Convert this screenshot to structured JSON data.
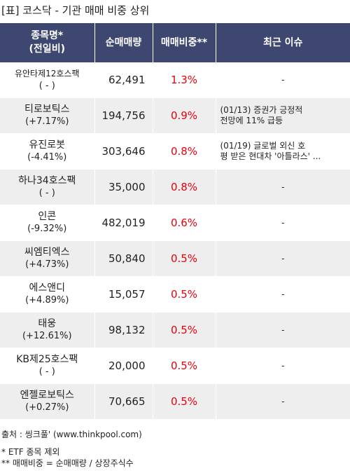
{
  "title": "[표] 코스닥 - 기관 매매 비중 상위",
  "headers": {
    "name_line1": "종목명*",
    "name_line2": "(전일비)",
    "volume": "순매매량",
    "ratio": "매매비중**",
    "issue": "최근 이슈"
  },
  "rows": [
    {
      "name": "유안타제12호스팩",
      "change": "( - )",
      "volume": "62,491",
      "ratio": "1.3%",
      "issue_line1": "-",
      "issue_line2": ""
    },
    {
      "name": "티로보틱스",
      "change": "(+7.17%)",
      "volume": "194,756",
      "ratio": "0.9%",
      "issue_line1": "(01/13) 증권가 긍정적",
      "issue_line2": "전망에 11% 급등"
    },
    {
      "name": "유진로봇",
      "change": "(-4.41%)",
      "volume": "303,646",
      "ratio": "0.8%",
      "issue_line1": "(01/19) 글로벌 외신 호",
      "issue_line2": "평 받은 현대차 '아틀라스' ..."
    },
    {
      "name": "하나34호스팩",
      "change": "( - )",
      "volume": "35,000",
      "ratio": "0.8%",
      "issue_line1": "-",
      "issue_line2": ""
    },
    {
      "name": "인콘",
      "change": "(-9.32%)",
      "volume": "482,019",
      "ratio": "0.6%",
      "issue_line1": "-",
      "issue_line2": ""
    },
    {
      "name": "씨엠티엑스",
      "change": "(+4.73%)",
      "volume": "50,840",
      "ratio": "0.5%",
      "issue_line1": "-",
      "issue_line2": ""
    },
    {
      "name": "에스앤디",
      "change": "(+4.89%)",
      "volume": "15,057",
      "ratio": "0.5%",
      "issue_line1": "-",
      "issue_line2": ""
    },
    {
      "name": "태웅",
      "change": "(+12.61%)",
      "volume": "98,132",
      "ratio": "0.5%",
      "issue_line1": "-",
      "issue_line2": ""
    },
    {
      "name": "KB제25호스팩",
      "change": "( - )",
      "volume": "20,000",
      "ratio": "0.5%",
      "issue_line1": "-",
      "issue_line2": ""
    },
    {
      "name": "엔젤로보틱스",
      "change": "(+0.27%)",
      "volume": "70,665",
      "ratio": "0.5%",
      "issue_line1": "-",
      "issue_line2": ""
    }
  ],
  "footer": {
    "source": "출처 : 씽크풀' (www.thinkpool.com)",
    "note1": "* ETF 종목 제외",
    "note2": "** 매매비중 = 순매매량 / 상장주식수"
  },
  "colors": {
    "header_bg": "#3d4770",
    "ratio_text": "#e8000b",
    "row_alt_bg": "#eeeeee"
  }
}
